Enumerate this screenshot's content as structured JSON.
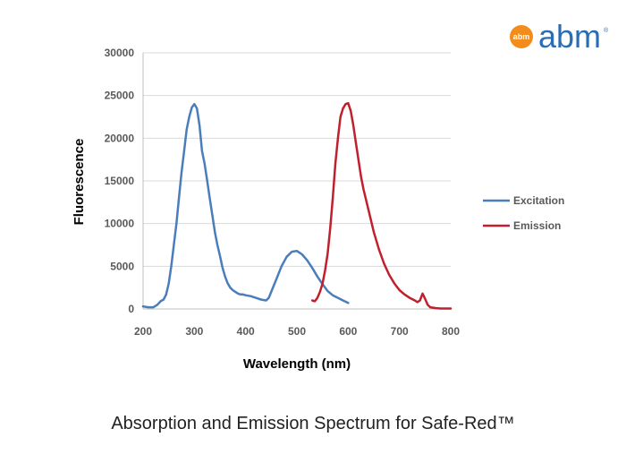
{
  "logo": {
    "text": "abm",
    "badge": "abm",
    "registered": "®"
  },
  "caption": "Absorption and Emission Spectrum for Safe-Red™",
  "chart_data": {
    "type": "line",
    "title": "",
    "xlabel": "Wavelength (nm)",
    "ylabel": "Fluorescence",
    "xlim": [
      200,
      800
    ],
    "ylim": [
      0,
      30000
    ],
    "x_ticks": [
      200,
      300,
      400,
      500,
      600,
      700,
      800
    ],
    "x_tick_labels": [
      "200",
      "300",
      "400",
      "500",
      "600",
      "700",
      "800"
    ],
    "y_ticks": [
      0,
      5000,
      10000,
      15000,
      20000,
      25000,
      30000
    ],
    "y_tick_labels": [
      "0",
      "5000",
      "10000",
      "15000",
      "20000",
      "25000",
      "30000"
    ],
    "grid": "horizontal",
    "legend_position": "right",
    "series": [
      {
        "name": "Excitation",
        "color": "#4a7ebb",
        "x": [
          200,
          210,
          220,
          228,
          234,
          240,
          245,
          250,
          255,
          260,
          265,
          270,
          275,
          280,
          285,
          290,
          295,
          300,
          305,
          310,
          315,
          320,
          325,
          330,
          335,
          340,
          345,
          350,
          355,
          360,
          365,
          370,
          375,
          380,
          385,
          390,
          395,
          400,
          410,
          420,
          430,
          440,
          445,
          450,
          460,
          470,
          480,
          490,
          500,
          510,
          520,
          530,
          540,
          550,
          560,
          570,
          580,
          590,
          600
        ],
        "y": [
          300,
          200,
          200,
          500,
          900,
          1100,
          1700,
          3000,
          5000,
          7500,
          10000,
          13000,
          16000,
          18500,
          21000,
          22500,
          23600,
          24000,
          23500,
          21500,
          18500,
          17000,
          15000,
          13000,
          11000,
          9000,
          7500,
          6200,
          4800,
          3800,
          3000,
          2500,
          2200,
          2000,
          1800,
          1700,
          1700,
          1600,
          1500,
          1300,
          1100,
          1000,
          1300,
          2000,
          3500,
          5000,
          6100,
          6700,
          6800,
          6400,
          5700,
          4800,
          3800,
          2900,
          2100,
          1600,
          1300,
          1000,
          700
        ]
      },
      {
        "name": "Emission",
        "color": "#c0202e",
        "x": [
          530,
          535,
          540,
          545,
          550,
          555,
          560,
          565,
          570,
          575,
          580,
          585,
          590,
          595,
          600,
          605,
          610,
          615,
          620,
          625,
          630,
          640,
          650,
          660,
          670,
          680,
          690,
          700,
          710,
          720,
          730,
          735,
          740,
          745,
          750,
          755,
          760,
          770,
          780,
          790,
          800
        ],
        "y": [
          1000,
          900,
          1300,
          2000,
          3000,
          4500,
          6500,
          9500,
          13000,
          17000,
          20000,
          22500,
          23500,
          24000,
          24100,
          23200,
          21500,
          19500,
          17500,
          15500,
          14000,
          11500,
          9000,
          7000,
          5300,
          4000,
          3000,
          2200,
          1700,
          1300,
          1000,
          800,
          1000,
          1800,
          1200,
          500,
          200,
          100,
          50,
          50,
          50
        ]
      }
    ]
  }
}
